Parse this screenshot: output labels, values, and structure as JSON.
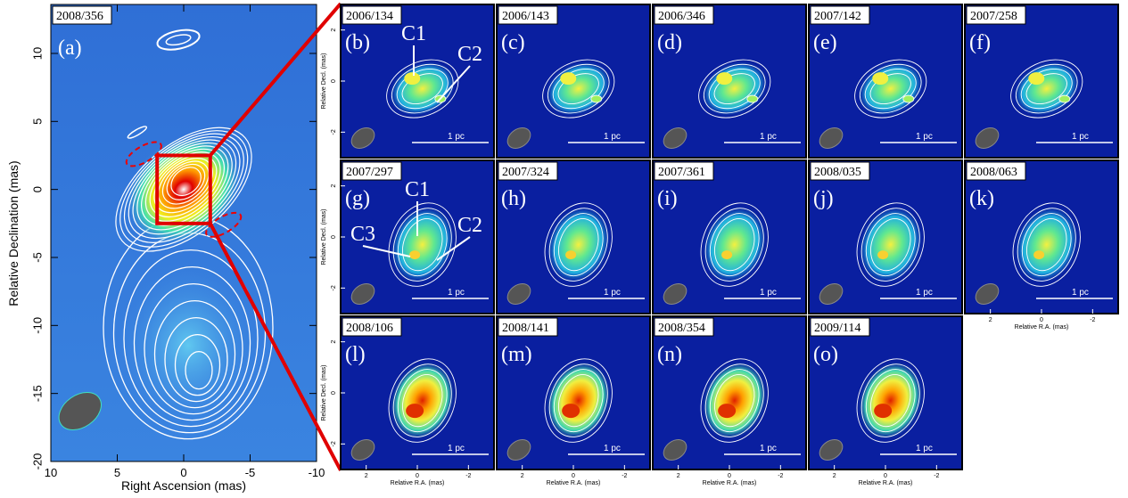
{
  "panel_a": {
    "date": "2008/356",
    "letter": "(a)",
    "xlabel": "Right Ascension  (mas)",
    "ylabel": "Relative Declination  (mas)",
    "xlim": [
      10,
      -10
    ],
    "xticks": [
      10,
      5,
      0,
      -5,
      -10
    ],
    "ylim": [
      -20,
      13.6
    ],
    "yticks": [
      10,
      5,
      0,
      -5,
      -10,
      -15,
      -20
    ]
  },
  "panels": [
    {
      "date": "2006/134",
      "letter": "(b)",
      "components": [
        "C1",
        "C2"
      ]
    },
    {
      "date": "2006/143",
      "letter": "(c)"
    },
    {
      "date": "2006/346",
      "letter": "(d)"
    },
    {
      "date": "2007/142",
      "letter": "(e)"
    },
    {
      "date": "2007/258",
      "letter": "(f)"
    },
    {
      "date": "2007/297",
      "letter": "(g)",
      "components": [
        "C1",
        "C3",
        "C2"
      ]
    },
    {
      "date": "2007/324",
      "letter": "(h)"
    },
    {
      "date": "2007/361",
      "letter": "(i)"
    },
    {
      "date": "2008/035",
      "letter": "(j)"
    },
    {
      "date": "2008/063",
      "letter": "(k)"
    },
    {
      "date": "2008/106",
      "letter": "(l)"
    },
    {
      "date": "2008/141",
      "letter": "(m)"
    },
    {
      "date": "2008/354",
      "letter": "(n)"
    },
    {
      "date": "2009/114",
      "letter": "(o)"
    }
  ],
  "scale_label": "1 pc",
  "small_xlabel": "Relative R.A. (mas)",
  "small_ylabel": "Relative Decl. (mas)",
  "small_xlim": [
    3,
    -3
  ],
  "small_ylim": [
    -3,
    3
  ],
  "small_ticks": [
    2,
    0,
    -2
  ]
}
